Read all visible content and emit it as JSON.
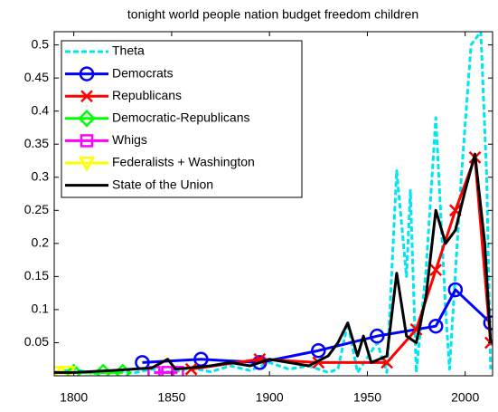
{
  "chart_data": {
    "type": "line",
    "title": "tonight world people nation budget freedom children",
    "xlim": [
      1790,
      2014
    ],
    "ylim": [
      0,
      0.52
    ],
    "xticks": [
      1800,
      1850,
      1900,
      1950,
      2000
    ],
    "yticks": [
      0.05,
      0.1,
      0.15,
      0.2,
      0.25,
      0.3,
      0.35,
      0.4,
      0.45,
      0.5
    ],
    "legend": "upper left",
    "series": [
      {
        "name": "Theta",
        "color": "#00e5ee",
        "style": "dashed",
        "marker": "none",
        "x": [
          1790,
          1800,
          1810,
          1820,
          1830,
          1840,
          1850,
          1860,
          1870,
          1880,
          1890,
          1900,
          1910,
          1920,
          1930,
          1935,
          1940,
          1945,
          1955,
          1960,
          1965,
          1970,
          1972,
          1975,
          1980,
          1985,
          1990,
          1992,
          1998,
          2003,
          2008,
          2011,
          2013
        ],
        "values": [
          0.005,
          0.01,
          0.003,
          0.008,
          0.004,
          0.01,
          0.005,
          0.012,
          0.006,
          0.015,
          0.008,
          0.02,
          0.01,
          0.015,
          0.005,
          0.01,
          0.08,
          0.005,
          0.05,
          0.005,
          0.31,
          0.15,
          0.28,
          0.005,
          0.16,
          0.39,
          0.1,
          0.01,
          0.3,
          0.5,
          0.52,
          0.3,
          0.01
        ]
      },
      {
        "name": "Democrats",
        "color": "#0000ff",
        "style": "solid",
        "marker": "circle",
        "x": [
          1835,
          1865,
          1895,
          1925,
          1955,
          1985,
          1995,
          2013
        ],
        "values": [
          0.02,
          0.025,
          0.02,
          0.038,
          0.06,
          0.075,
          0.13,
          0.08
        ]
      },
      {
        "name": "Republicans",
        "color": "#ff0000",
        "style": "solid",
        "marker": "x",
        "x": [
          1860,
          1895,
          1925,
          1960,
          1975,
          1985,
          1995,
          2005,
          2013
        ],
        "values": [
          0.01,
          0.025,
          0.02,
          0.02,
          0.07,
          0.16,
          0.25,
          0.33,
          0.05
        ]
      },
      {
        "name": "Democratic-Republicans",
        "color": "#00ff00",
        "style": "solid",
        "marker": "diamond",
        "x": [
          1800,
          1815,
          1825
        ],
        "values": [
          0.005,
          0.005,
          0.005
        ]
      },
      {
        "name": "Whigs",
        "color": "#ff00ff",
        "style": "solid",
        "marker": "square",
        "x": [
          1841,
          1848,
          1853
        ],
        "values": [
          0.005,
          0.005,
          0.005
        ]
      },
      {
        "name": "Federalists + Washington",
        "color": "#ffff00",
        "style": "solid",
        "marker": "triangle",
        "x": [
          1790,
          1797
        ],
        "values": [
          0.005,
          0.005
        ]
      },
      {
        "name": "State of the Union",
        "color": "#000000",
        "style": "solid",
        "marker": "none",
        "x": [
          1790,
          1800,
          1820,
          1840,
          1848,
          1852,
          1870,
          1880,
          1890,
          1900,
          1910,
          1920,
          1930,
          1935,
          1940,
          1945,
          1948,
          1952,
          1960,
          1965,
          1970,
          1975,
          1980,
          1985,
          1990,
          1995,
          2000,
          2005,
          2010,
          2013
        ],
        "values": [
          0.005,
          0.005,
          0.008,
          0.012,
          0.025,
          0.01,
          0.015,
          0.02,
          0.015,
          0.025,
          0.02,
          0.015,
          0.03,
          0.05,
          0.08,
          0.03,
          0.06,
          0.02,
          0.03,
          0.155,
          0.06,
          0.05,
          0.12,
          0.25,
          0.2,
          0.22,
          0.28,
          0.335,
          0.2,
          0.05
        ]
      }
    ]
  }
}
